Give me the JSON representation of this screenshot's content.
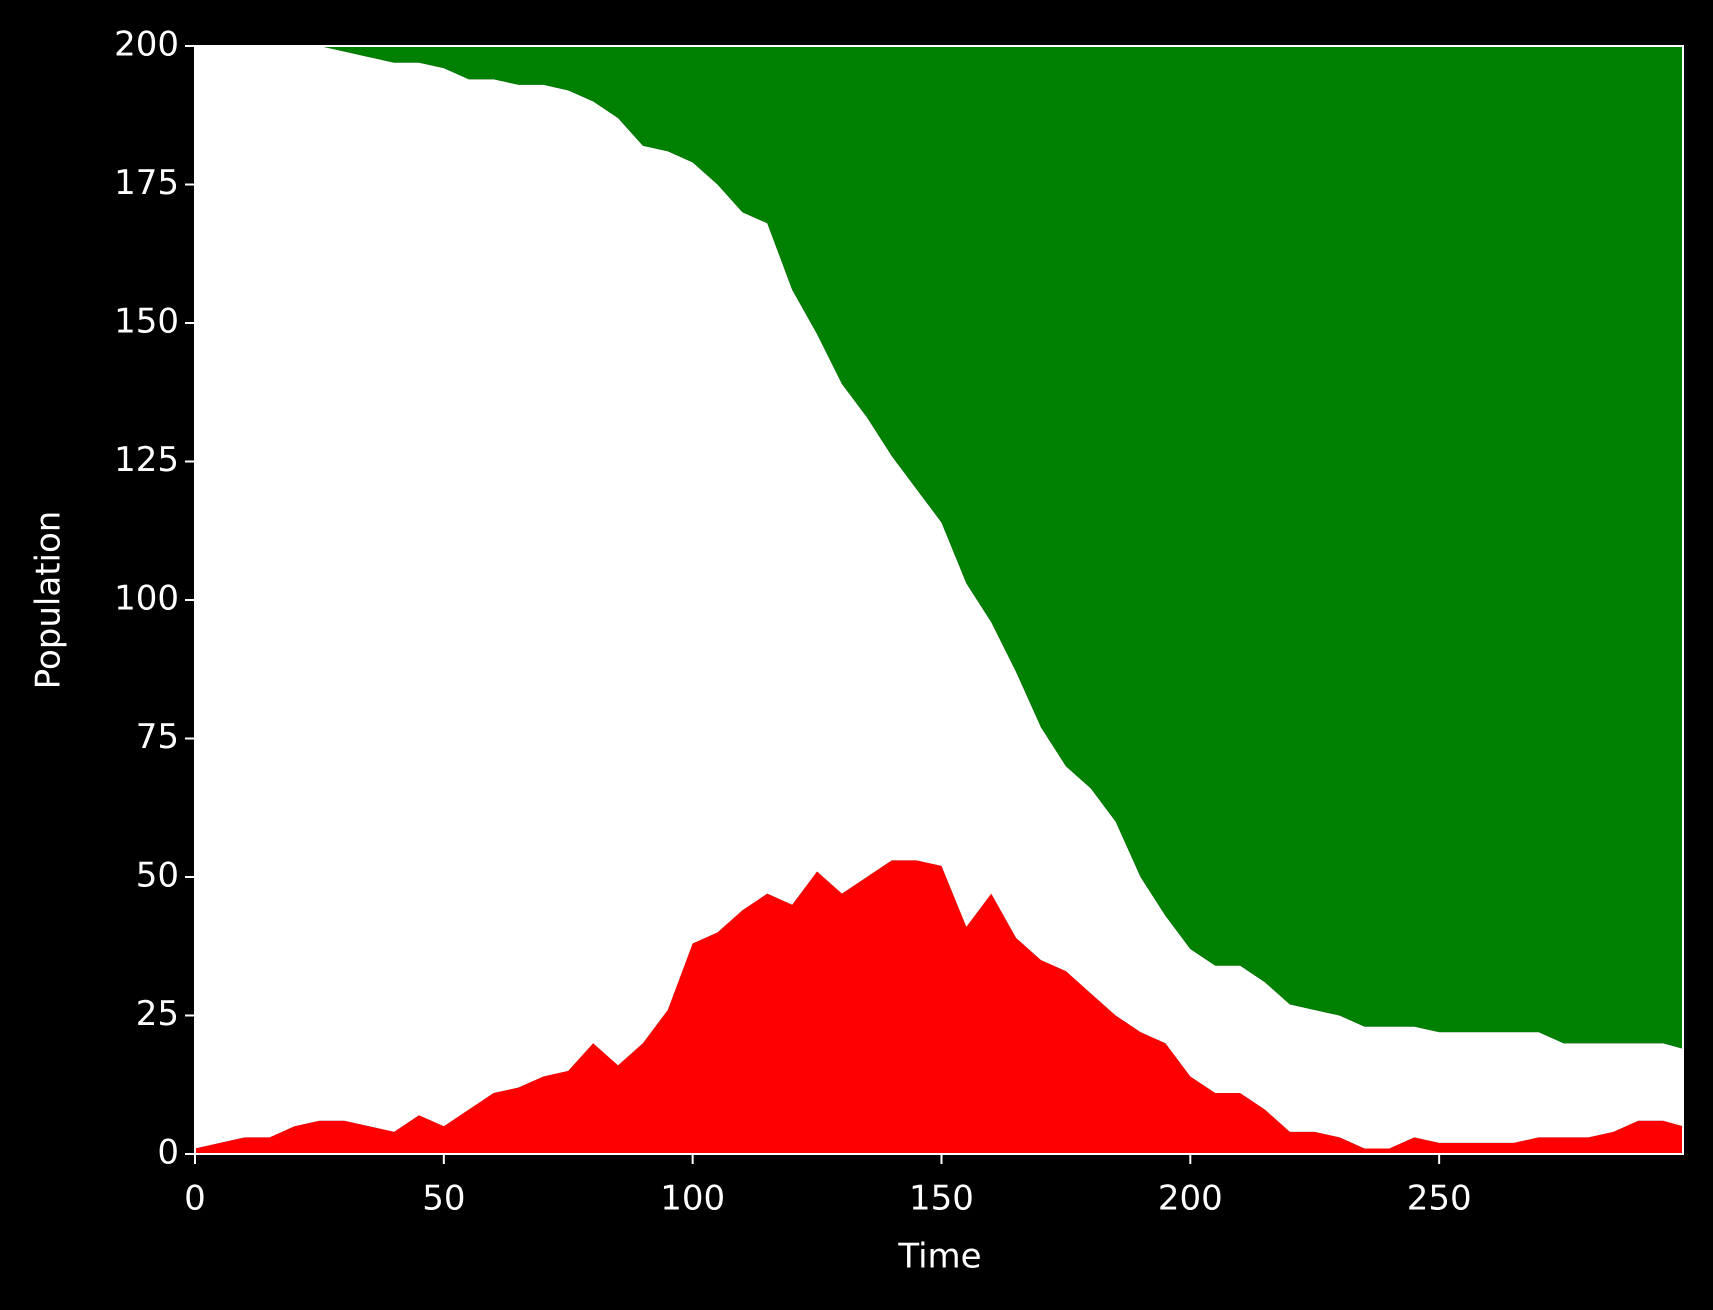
{
  "chart_data": {
    "type": "stackedarea",
    "xlabel": "Time",
    "ylabel": "Population",
    "x": [
      0,
      5,
      10,
      15,
      20,
      25,
      30,
      35,
      40,
      45,
      50,
      55,
      60,
      65,
      70,
      75,
      80,
      85,
      90,
      95,
      100,
      105,
      110,
      115,
      120,
      125,
      130,
      135,
      140,
      145,
      150,
      155,
      160,
      165,
      170,
      175,
      180,
      185,
      190,
      195,
      200,
      205,
      210,
      215,
      220,
      225,
      230,
      235,
      240,
      245,
      250,
      255,
      260,
      265,
      270,
      275,
      280,
      285,
      290,
      295,
      299
    ],
    "series": [
      {
        "color": "#ff0000",
        "values": [
          1,
          2,
          3,
          3,
          5,
          6,
          6,
          5,
          4,
          7,
          5,
          8,
          11,
          12,
          14,
          15,
          20,
          16,
          20,
          26,
          38,
          40,
          44,
          47,
          45,
          51,
          47,
          50,
          53,
          53,
          52,
          41,
          47,
          39,
          35,
          33,
          29,
          25,
          22,
          20,
          14,
          11,
          11,
          8,
          4,
          4,
          3,
          1,
          1,
          3,
          2,
          2,
          2,
          2,
          3,
          3,
          3,
          4,
          6,
          6,
          5
        ]
      },
      {
        "color": "#ffffff",
        "values": [
          199,
          198,
          197,
          197,
          195,
          194,
          193,
          193,
          193,
          190,
          191,
          186,
          183,
          181,
          179,
          177,
          170,
          171,
          162,
          155,
          141,
          135,
          126,
          121,
          111,
          97,
          92,
          83,
          73,
          67,
          62,
          62,
          49,
          48,
          42,
          37,
          37,
          35,
          28,
          23,
          23,
          23,
          23,
          23,
          23,
          22,
          22,
          22,
          22,
          20,
          20,
          20,
          20,
          20,
          19,
          17,
          17,
          16,
          14,
          14,
          14
        ]
      },
      {
        "color": "#008000",
        "values": [
          0,
          0,
          0,
          0,
          0,
          0,
          1,
          2,
          3,
          3,
          4,
          6,
          6,
          7,
          7,
          8,
          10,
          13,
          18,
          19,
          21,
          25,
          30,
          32,
          44,
          52,
          61,
          67,
          74,
          80,
          86,
          97,
          104,
          113,
          123,
          130,
          134,
          140,
          150,
          157,
          163,
          166,
          166,
          169,
          173,
          174,
          175,
          177,
          177,
          177,
          178,
          178,
          178,
          178,
          178,
          180,
          180,
          180,
          180,
          180,
          181
        ]
      }
    ],
    "xlim": [
      0,
      299
    ],
    "ylim": [
      0,
      200
    ],
    "xticks": [
      0,
      50,
      100,
      150,
      200,
      250
    ],
    "yticks": [
      0,
      25,
      50,
      75,
      100,
      125,
      150,
      175,
      200
    ]
  }
}
